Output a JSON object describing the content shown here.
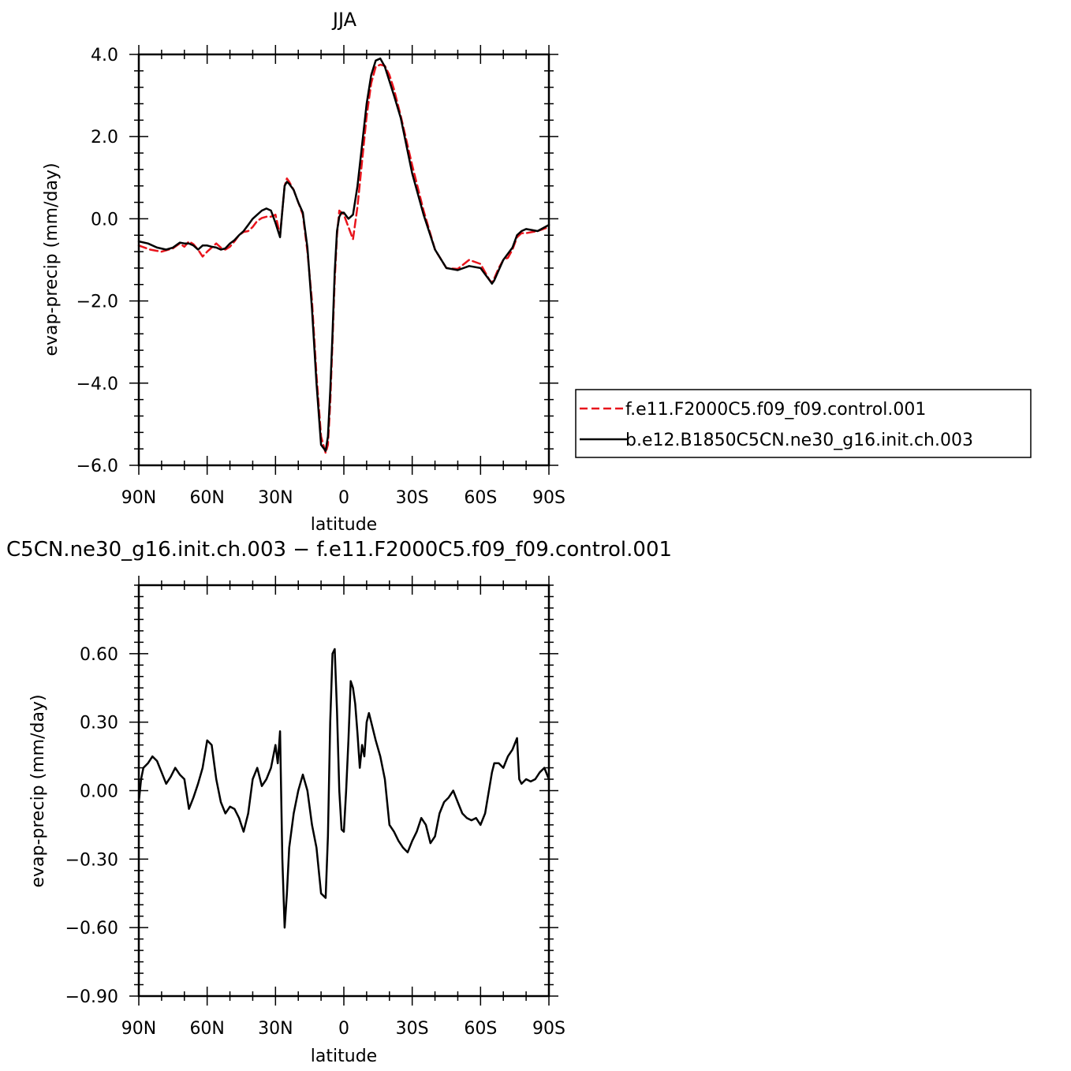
{
  "chart_data": [
    {
      "type": "line",
      "title": "JJA",
      "xlabel": "latitude",
      "ylabel": "evap-precip (mm/day)",
      "xlim": [
        -90,
        90
      ],
      "ylim": [
        -6.0,
        4.0
      ],
      "xticks": [
        -90,
        -60,
        -30,
        0,
        30,
        60,
        90
      ],
      "xtick_labels": [
        "90N",
        "60N",
        "30N",
        "0",
        "30S",
        "60S",
        "90S"
      ],
      "yticks": [
        -6,
        -4,
        -2,
        0,
        2,
        4
      ],
      "ytick_labels": [
        "−6.0",
        "−4.0",
        "−2.0",
        "0.0",
        "2.0",
        "4.0"
      ],
      "legend_position": "right",
      "series": [
        {
          "name": "f.e11.F2000C5.f09_f09.control.001",
          "color": "#e8141c",
          "dash": "dashed",
          "x": [
            -90,
            -85,
            -80,
            -75,
            -72,
            -70,
            -68,
            -66,
            -64,
            -62,
            -60,
            -58,
            -56,
            -54,
            -52,
            -50,
            -48,
            -46,
            -44,
            -42,
            -40,
            -38,
            -36,
            -34,
            -32,
            -30,
            -28,
            -27,
            -26,
            -25,
            -24,
            -22,
            -20,
            -18,
            -16,
            -14,
            -12,
            -10,
            -8,
            -7,
            -6,
            -5,
            -4,
            -3,
            -2,
            0,
            2,
            4,
            6,
            8,
            10,
            12,
            14,
            16,
            18,
            20,
            22,
            25,
            30,
            35,
            40,
            45,
            50,
            55,
            60,
            62,
            64,
            65,
            66,
            68,
            70,
            72,
            74,
            76,
            78,
            80,
            85,
            90
          ],
          "y": [
            -0.65,
            -0.75,
            -0.8,
            -0.72,
            -0.6,
            -0.68,
            -0.55,
            -0.62,
            -0.75,
            -0.92,
            -0.8,
            -0.7,
            -0.6,
            -0.7,
            -0.75,
            -0.68,
            -0.55,
            -0.4,
            -0.32,
            -0.3,
            -0.2,
            -0.05,
            0.02,
            0.05,
            0.05,
            0.1,
            -0.4,
            0.2,
            0.8,
            0.98,
            0.9,
            0.7,
            0.4,
            0.1,
            -0.8,
            -2.0,
            -3.8,
            -5.3,
            -5.7,
            -5.5,
            -4.5,
            -3.0,
            -1.5,
            -0.4,
            0.2,
            0.1,
            -0.2,
            -0.5,
            0.3,
            1.4,
            2.5,
            3.3,
            3.7,
            3.75,
            3.72,
            3.5,
            3.15,
            2.5,
            1.3,
            0.2,
            -0.75,
            -1.2,
            -1.22,
            -1.0,
            -1.1,
            -1.3,
            -1.5,
            -1.55,
            -1.45,
            -1.2,
            -1.0,
            -0.95,
            -0.75,
            -0.45,
            -0.35,
            -0.35,
            -0.3,
            -0.2
          ]
        },
        {
          "name": "b.e12.B1850C5CN.ne30_g16.init.ch.003",
          "color": "#000000",
          "dash": "solid",
          "x": [
            -90,
            -86,
            -82,
            -78,
            -75,
            -72,
            -70,
            -68,
            -66,
            -64,
            -62,
            -60,
            -58,
            -56,
            -54,
            -52,
            -50,
            -48,
            -46,
            -44,
            -42,
            -40,
            -38,
            -36,
            -34,
            -32,
            -30,
            -28,
            -27,
            -26,
            -25,
            -24,
            -22,
            -20,
            -18,
            -16,
            -14,
            -12,
            -10,
            -8,
            -7,
            -6,
            -5,
            -4,
            -3,
            -2,
            -1,
            0,
            2,
            4,
            6,
            8,
            10,
            12,
            14,
            16,
            18,
            20,
            22,
            25,
            30,
            35,
            40,
            45,
            50,
            55,
            60,
            62,
            64,
            65,
            66,
            68,
            70,
            72,
            74,
            76,
            78,
            80,
            85,
            90
          ],
          "y": [
            -0.55,
            -0.6,
            -0.7,
            -0.75,
            -0.7,
            -0.58,
            -0.6,
            -0.6,
            -0.65,
            -0.75,
            -0.65,
            -0.65,
            -0.68,
            -0.7,
            -0.75,
            -0.72,
            -0.6,
            -0.52,
            -0.4,
            -0.3,
            -0.15,
            0.0,
            0.1,
            0.2,
            0.25,
            0.2,
            -0.1,
            -0.45,
            0.2,
            0.8,
            0.9,
            0.85,
            0.7,
            0.4,
            0.15,
            -0.7,
            -2.2,
            -4.0,
            -5.5,
            -5.65,
            -5.3,
            -4.2,
            -2.8,
            -1.3,
            -0.3,
            0.05,
            0.15,
            0.15,
            0.0,
            0.1,
            0.8,
            1.8,
            2.8,
            3.5,
            3.85,
            3.9,
            3.7,
            3.35,
            3.0,
            2.45,
            1.1,
            0.1,
            -0.75,
            -1.2,
            -1.25,
            -1.15,
            -1.2,
            -1.35,
            -1.5,
            -1.58,
            -1.5,
            -1.25,
            -1.0,
            -0.85,
            -0.7,
            -0.4,
            -0.3,
            -0.25,
            -0.3,
            -0.15
          ]
        }
      ]
    },
    {
      "type": "line",
      "title": "C5CN.ne30_g16.init.ch.003 − f.e11.F2000C5.f09_f09.control.001",
      "xlabel": "latitude",
      "ylabel": "evap-precip (mm/day)",
      "xlim": [
        -90,
        90
      ],
      "ylim": [
        -0.9,
        0.9
      ],
      "xticks": [
        -90,
        -60,
        -30,
        0,
        30,
        60,
        90
      ],
      "xtick_labels": [
        "90N",
        "60N",
        "30N",
        "0",
        "30S",
        "60S",
        "90S"
      ],
      "yticks": [
        -0.9,
        -0.6,
        -0.3,
        0.0,
        0.3,
        0.6
      ],
      "ytick_labels": [
        "−0.90",
        "−0.60",
        "−0.30",
        "0.00",
        "0.30",
        "0.60"
      ],
      "series": [
        {
          "color": "#000000",
          "dash": "solid",
          "x": [
            -90,
            -89,
            -88,
            -86,
            -84,
            -82,
            -80,
            -78,
            -76,
            -74,
            -72,
            -70,
            -68,
            -66,
            -64,
            -62,
            -60,
            -58,
            -56,
            -54,
            -52,
            -50,
            -48,
            -46,
            -44,
            -42,
            -40,
            -38,
            -36,
            -34,
            -32,
            -30,
            -29,
            -28,
            -27,
            -26,
            -25,
            -24,
            -22,
            -20,
            -18,
            -16,
            -14,
            -12,
            -10,
            -8,
            -7,
            -6,
            -5,
            -4,
            -3,
            -2,
            -1,
            0,
            1,
            2,
            3,
            4,
            5,
            6,
            7,
            8,
            9,
            10,
            11,
            12,
            14,
            16,
            18,
            20,
            22,
            24,
            26,
            28,
            30,
            32,
            34,
            36,
            38,
            40,
            42,
            44,
            46,
            48,
            50,
            52,
            54,
            56,
            58,
            60,
            62,
            64,
            65,
            66,
            68,
            70,
            72,
            74,
            76,
            77,
            78,
            80,
            82,
            84,
            86,
            88,
            90
          ],
          "y": [
            -0.05,
            0.05,
            0.1,
            0.12,
            0.15,
            0.13,
            0.08,
            0.03,
            0.06,
            0.1,
            0.07,
            0.05,
            -0.08,
            -0.03,
            0.03,
            0.1,
            0.22,
            0.2,
            0.05,
            -0.05,
            -0.1,
            -0.07,
            -0.08,
            -0.12,
            -0.18,
            -0.1,
            0.05,
            0.1,
            0.02,
            0.05,
            0.1,
            0.2,
            0.12,
            0.26,
            -0.3,
            -0.6,
            -0.45,
            -0.25,
            -0.1,
            0.0,
            0.07,
            0.0,
            -0.15,
            -0.25,
            -0.45,
            -0.47,
            -0.2,
            0.3,
            0.6,
            0.62,
            0.35,
            0.0,
            -0.17,
            -0.18,
            0.0,
            0.22,
            0.48,
            0.45,
            0.38,
            0.25,
            0.1,
            0.2,
            0.15,
            0.3,
            0.34,
            0.3,
            0.22,
            0.15,
            0.05,
            -0.15,
            -0.18,
            -0.22,
            -0.25,
            -0.27,
            -0.22,
            -0.18,
            -0.12,
            -0.15,
            -0.23,
            -0.2,
            -0.1,
            -0.05,
            -0.03,
            0.0,
            -0.05,
            -0.1,
            -0.12,
            -0.13,
            -0.12,
            -0.15,
            -0.1,
            0.02,
            0.08,
            0.12,
            0.12,
            0.1,
            0.15,
            0.18,
            0.23,
            0.05,
            0.03,
            0.05,
            0.04,
            0.05,
            0.08,
            0.1,
            0.05
          ]
        }
      ]
    }
  ]
}
